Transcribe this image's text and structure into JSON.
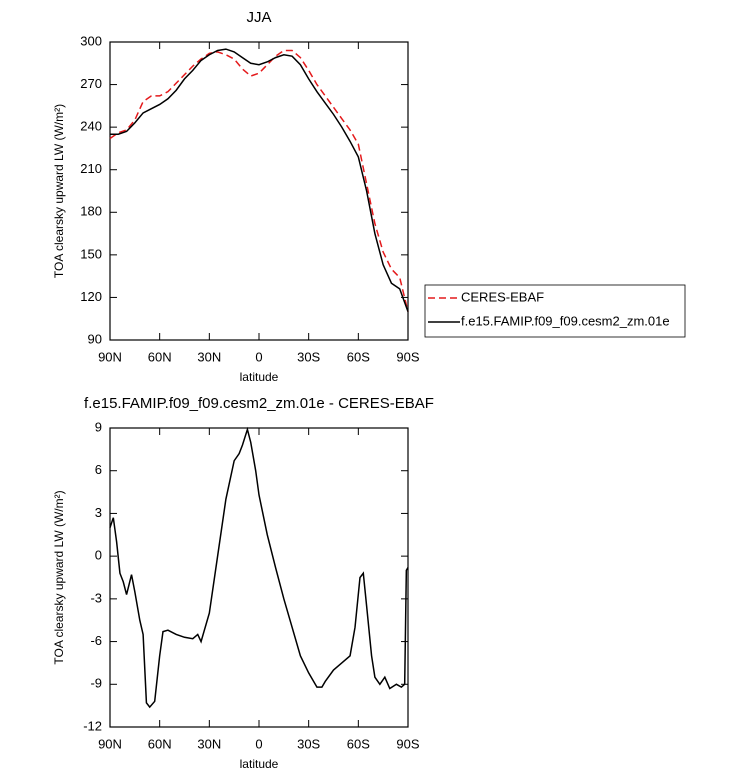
{
  "chart_data": [
    {
      "type": "line",
      "title": "JJA",
      "xlabel": "latitude",
      "ylabel": "TOA clearsky upward LW (W/m²)",
      "x": [
        90,
        85,
        80,
        75,
        70,
        65,
        60,
        55,
        50,
        45,
        40,
        35,
        30,
        25,
        20,
        15,
        10,
        5,
        0,
        -5,
        -10,
        -15,
        -20,
        -25,
        -30,
        -35,
        -40,
        -45,
        -50,
        -55,
        -60,
        -65,
        -70,
        -75,
        -80,
        -85,
        -90
      ],
      "xlim": [
        90,
        -90
      ],
      "xticks": [
        {
          "value": 90,
          "label": "90N"
        },
        {
          "value": 60,
          "label": "60N"
        },
        {
          "value": 30,
          "label": "30N"
        },
        0,
        {
          "value": -30,
          "label": "30S"
        },
        {
          "value": -60,
          "label": "60S"
        },
        {
          "value": -90,
          "label": "90S"
        }
      ],
      "ylim": [
        90,
        300
      ],
      "yticks": [
        90,
        120,
        150,
        180,
        210,
        240,
        270,
        300
      ],
      "legend": "right",
      "series": [
        {
          "name": "CERES-EBAF",
          "color": "#e41a1c",
          "dash": "dashed",
          "values": [
            232,
            236,
            238,
            245,
            258,
            262,
            262,
            265,
            271,
            277,
            283,
            288,
            292,
            293,
            291,
            288,
            281,
            276,
            278,
            284,
            290,
            294,
            294,
            289,
            280,
            270,
            262,
            254,
            246,
            238,
            228,
            200,
            172,
            152,
            140,
            134,
            110
          ]
        },
        {
          "name": "f.e15.FAMIP.f09_f09.cesm2_zm.01e",
          "color": "#000000",
          "dash": "solid",
          "values": [
            235,
            235,
            237,
            243,
            250,
            253,
            256,
            260,
            266,
            274,
            280,
            287,
            291,
            294,
            295,
            293,
            289,
            285,
            284,
            286,
            289,
            291,
            290,
            284,
            274,
            265,
            257,
            249,
            240,
            230,
            219,
            195,
            165,
            143,
            130,
            126,
            110
          ]
        }
      ]
    },
    {
      "type": "line",
      "title": "f.e15.FAMIP.f09_f09.cesm2_zm.01e - CERES-EBAF",
      "xlabel": "latitude",
      "ylabel": "TOA clearsky upward LW (W/m²)",
      "x": [
        90,
        88,
        86,
        84,
        82,
        80,
        77,
        75,
        72,
        70,
        68,
        66,
        63,
        60,
        58,
        55,
        50,
        45,
        40,
        37,
        35,
        30,
        25,
        20,
        15,
        12,
        10,
        7,
        5,
        2,
        0,
        -5,
        -10,
        -15,
        -20,
        -25,
        -30,
        -35,
        -38,
        -40,
        -45,
        -50,
        -55,
        -58,
        -61,
        -63,
        -65,
        -68,
        -70,
        -73,
        -76,
        -79,
        -83,
        -86,
        -88,
        -89,
        -90
      ],
      "xlim": [
        90,
        -90
      ],
      "xticks": [
        {
          "value": 90,
          "label": "90N"
        },
        {
          "value": 60,
          "label": "60N"
        },
        {
          "value": 30,
          "label": "30N"
        },
        0,
        {
          "value": -30,
          "label": "30S"
        },
        {
          "value": -60,
          "label": "60S"
        },
        {
          "value": -90,
          "label": "90S"
        }
      ],
      "ylim": [
        -12,
        9
      ],
      "yticks": [
        -12,
        -9,
        -6,
        -3,
        0,
        3,
        6,
        9
      ],
      "series": [
        {
          "color": "#000000",
          "dash": "solid",
          "values": [
            2,
            2.7,
            1,
            -1.2,
            -1.8,
            -2.7,
            -1.3,
            -2.5,
            -4.5,
            -5.5,
            -10.3,
            -10.6,
            -10.2,
            -7,
            -5.3,
            -5.2,
            -5.5,
            -5.7,
            -5.8,
            -5.5,
            -6,
            -4,
            0,
            4,
            6.7,
            7.2,
            7.8,
            8.9,
            8,
            6,
            4.3,
            1.5,
            -0.8,
            -3,
            -5,
            -7,
            -8.2,
            -9.2,
            -9.2,
            -8.8,
            -8,
            -7.5,
            -7,
            -5,
            -1.5,
            -1.2,
            -3.5,
            -7,
            -8.5,
            -9,
            -8.5,
            -9.3,
            -9,
            -9.2,
            -9,
            -1,
            -0.8
          ]
        }
      ]
    }
  ]
}
